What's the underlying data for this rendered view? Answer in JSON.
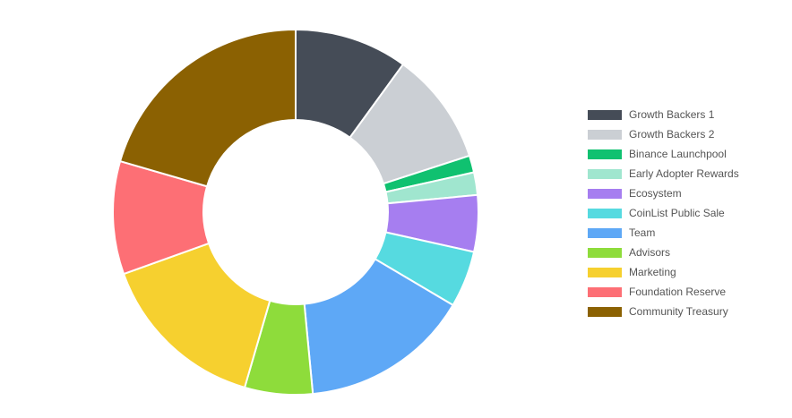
{
  "chart_data": {
    "type": "pie",
    "variant": "doughnut",
    "title": "",
    "legend_position": "right",
    "labels": [
      "Growth Backers 1",
      "Growth Backers 2",
      "Binance Launchpool",
      "Early Adopter Rewards",
      "Ecosystem",
      "CoinList Public Sale",
      "Team",
      "Advisors",
      "Marketing",
      "Foundation Reserve",
      "Community Treasury"
    ],
    "values": [
      10,
      10,
      1.5,
      2,
      5,
      5,
      15,
      6,
      15,
      10,
      20.5
    ],
    "colors": [
      "#454c57",
      "#cbcfd4",
      "#10c170",
      "#a0e6cf",
      "#a67ef0",
      "#56dae0",
      "#5ea8f6",
      "#8edc3b",
      "#f6d02f",
      "#fd6f75",
      "#8b6102"
    ]
  }
}
